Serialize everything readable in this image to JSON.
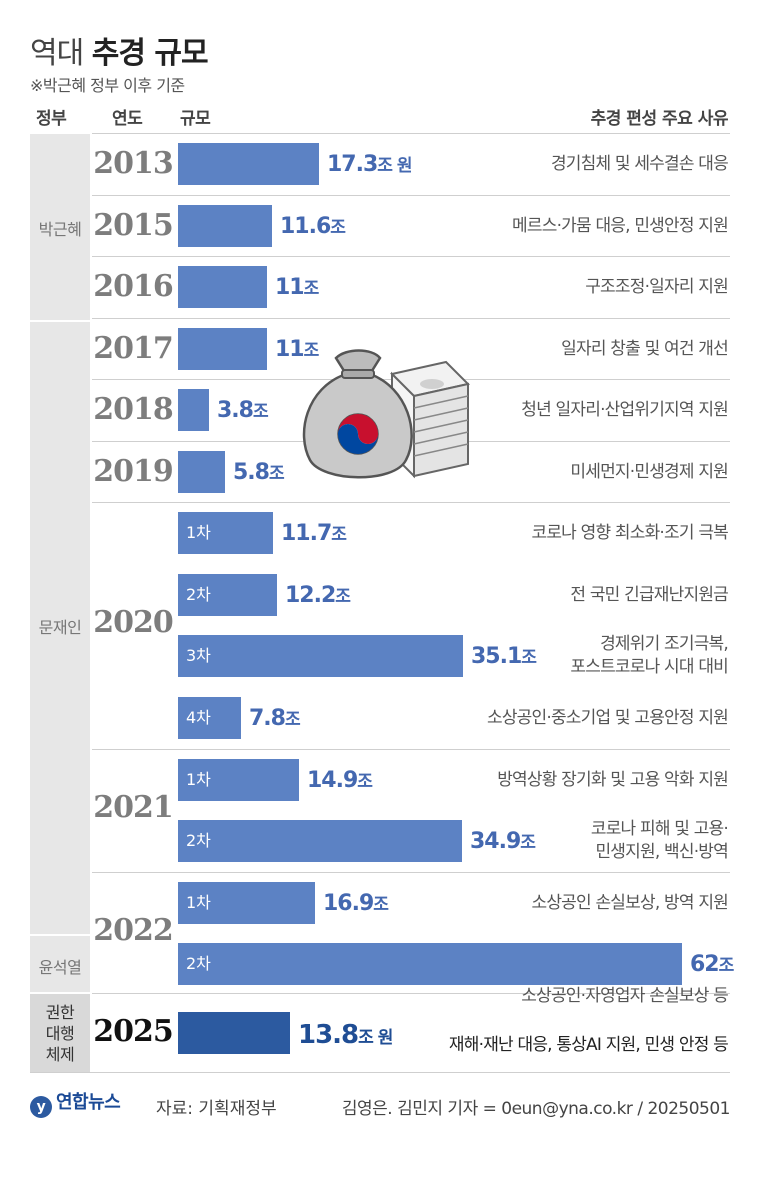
{
  "header": {
    "title_light": "역대",
    "title_bold": "추경 규모",
    "subtitle": "※박근혜 정부 이후 기준"
  },
  "columns": {
    "gov": "정부",
    "year": "연도",
    "size": "규모",
    "reason": "추경 편성 주요 사유"
  },
  "governments": {
    "park": "박근혜",
    "moon": "문재인",
    "yoon": "윤석열",
    "acting": [
      "권한",
      "대행",
      "체제"
    ]
  },
  "years": {
    "y2013": "2013",
    "y2015": "2015",
    "y2016": "2016",
    "y2017": "2017",
    "y2018": "2018",
    "y2019": "2019",
    "y2020": "2020",
    "y2021": "2021",
    "y2022": "2022",
    "y2025": "2025"
  },
  "chart_data": {
    "type": "bar",
    "orientation": "horizontal",
    "unit": "조",
    "rows": [
      {
        "id": "r2013",
        "year": "2013",
        "round": "",
        "value": 17.3,
        "value_text": "17.3",
        "unit_text": "조 원",
        "reason": [
          "경기침체 및 세수결손 대응"
        ]
      },
      {
        "id": "r2015",
        "year": "2015",
        "round": "",
        "value": 11.6,
        "value_text": "11.6",
        "unit_text": "조",
        "reason": [
          "메르스·가뭄 대응, 민생안정 지원"
        ]
      },
      {
        "id": "r2016",
        "year": "2016",
        "round": "",
        "value": 11,
        "value_text": "11",
        "unit_text": "조",
        "reason": [
          "구조조정·일자리 지원"
        ]
      },
      {
        "id": "r2017",
        "year": "2017",
        "round": "",
        "value": 11,
        "value_text": "11",
        "unit_text": "조",
        "reason": [
          "일자리 창출 및 여건 개선"
        ]
      },
      {
        "id": "r2018",
        "year": "2018",
        "round": "",
        "value": 3.8,
        "value_text": "3.8",
        "unit_text": "조",
        "reason": [
          "청년 일자리·산업위기지역 지원"
        ]
      },
      {
        "id": "r2019",
        "year": "2019",
        "round": "",
        "value": 5.8,
        "value_text": "5.8",
        "unit_text": "조",
        "reason": [
          "미세먼지·민생경제 지원"
        ]
      },
      {
        "id": "r2020a",
        "year": "2020",
        "round": "1차",
        "value": 11.7,
        "value_text": "11.7",
        "unit_text": "조",
        "reason": [
          "코로나 영향 최소화·조기 극복"
        ]
      },
      {
        "id": "r2020b",
        "year": "2020",
        "round": "2차",
        "value": 12.2,
        "value_text": "12.2",
        "unit_text": "조",
        "reason": [
          "전 국민 긴급재난지원금"
        ]
      },
      {
        "id": "r2020c",
        "year": "2020",
        "round": "3차",
        "value": 35.1,
        "value_text": "35.1",
        "unit_text": "조",
        "reason": [
          "경제위기 조기극복,",
          "포스트코로나 시대 대비"
        ]
      },
      {
        "id": "r2020d",
        "year": "2020",
        "round": "4차",
        "value": 7.8,
        "value_text": "7.8",
        "unit_text": "조",
        "reason": [
          "소상공인·중소기업 및 고용안정 지원"
        ]
      },
      {
        "id": "r2021a",
        "year": "2021",
        "round": "1차",
        "value": 14.9,
        "value_text": "14.9",
        "unit_text": "조",
        "reason": [
          "방역상황 장기화 및 고용 악화 지원"
        ]
      },
      {
        "id": "r2021b",
        "year": "2021",
        "round": "2차",
        "value": 34.9,
        "value_text": "34.9",
        "unit_text": "조",
        "reason": [
          "코로나 피해 및 고용·",
          "민생지원, 백신·방역"
        ]
      },
      {
        "id": "r2022a",
        "year": "2022",
        "round": "1차",
        "value": 16.9,
        "value_text": "16.9",
        "unit_text": "조",
        "reason": [
          "소상공인 손실보상, 방역 지원"
        ]
      },
      {
        "id": "r2022b",
        "year": "2022",
        "round": "2차",
        "value": 62,
        "value_text": "62",
        "unit_text": "조",
        "reason": [
          "소상공인·자영업자 손실보상 등"
        ]
      },
      {
        "id": "r2025",
        "year": "2025",
        "round": "",
        "value": 13.8,
        "value_text": "13.8",
        "unit_text": "조 원",
        "reason": [
          "재해·재난 대응, 통상AI 지원, 민생 안정 등"
        ]
      }
    ]
  },
  "colors": {
    "bar": "#5c82c4",
    "bar_highlight": "#2c5aa0",
    "value_text": "#4468b0",
    "gov_bg": "#e7e7e7"
  },
  "illustration": {
    "money_bag_icon": "money-bag-icon",
    "cash_stack_icon": "cash-stack-icon"
  },
  "footer": {
    "logo": "연합뉴스",
    "source": "자료: 기획재정부",
    "credit": "김영은. 김민지 기자 = 0eun@yna.co.kr / 20250501"
  }
}
